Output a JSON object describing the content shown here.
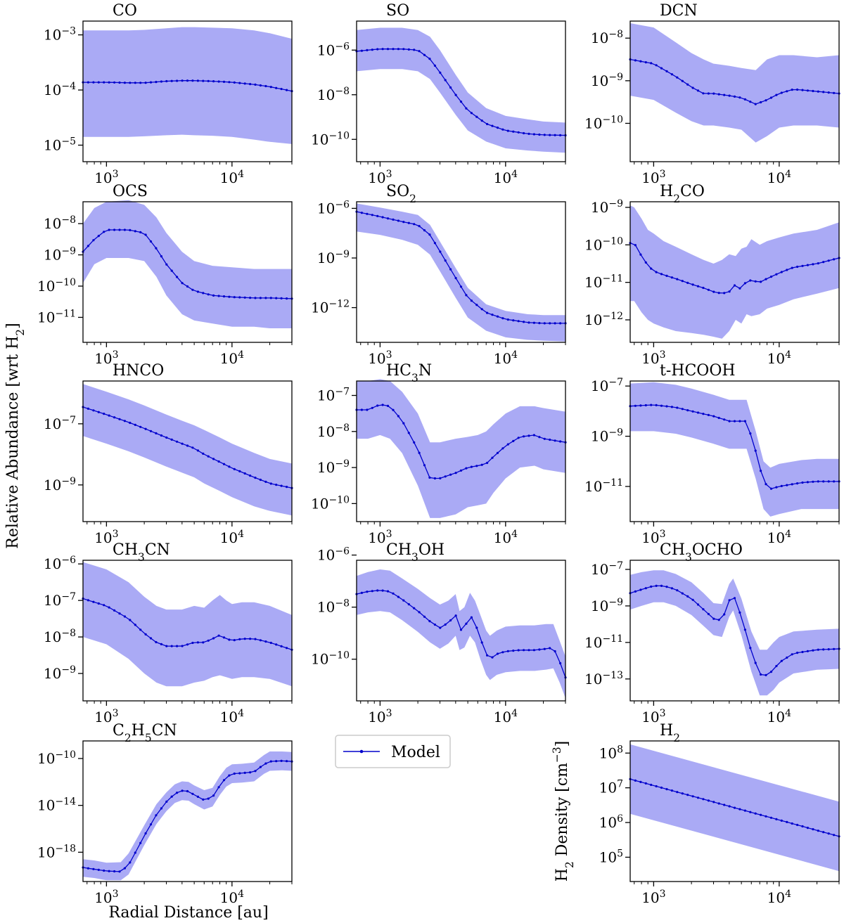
{
  "figure": {
    "ylabel_left": "Relative Abundance [wrt H$_2$]",
    "xlabel": "Radial Distance [au]",
    "legend_label": "Model",
    "colors": {
      "line": "#0000cc",
      "band": "#aaaaf5",
      "frame": "#000000"
    }
  },
  "chart_data": [
    {
      "type": "line",
      "title": "CO",
      "xlim": [
        650,
        30000
      ],
      "ylim_exp": [
        -5.3,
        -2.75
      ],
      "yticks": [
        -5,
        -4,
        -3
      ],
      "xticks": [
        3,
        4
      ],
      "x": [
        650,
        1000,
        1500,
        2000,
        3000,
        4000,
        5000,
        7000,
        10000,
        15000,
        20000,
        30000
      ],
      "values_exp": [
        -3.86,
        -3.86,
        -3.87,
        -3.87,
        -3.84,
        -3.83,
        -3.83,
        -3.84,
        -3.86,
        -3.9,
        -3.94,
        -4.02
      ],
      "upper_exp": [
        -2.92,
        -2.92,
        -2.92,
        -2.91,
        -2.88,
        -2.86,
        -2.86,
        -2.87,
        -2.88,
        -2.92,
        -2.97,
        -3.07
      ],
      "lower_exp": [
        -4.85,
        -4.85,
        -4.85,
        -4.84,
        -4.82,
        -4.81,
        -4.82,
        -4.83,
        -4.85,
        -4.9,
        -4.94,
        -4.98
      ]
    },
    {
      "type": "line",
      "title": "SO",
      "xlim": [
        650,
        30000
      ],
      "ylim_exp": [
        -11,
        -4.7
      ],
      "yticks": [
        -10,
        -8,
        -6
      ],
      "xticks": [
        3,
        4
      ],
      "x": [
        650,
        1000,
        1500,
        2000,
        2500,
        3000,
        4000,
        5000,
        7000,
        10000,
        15000,
        20000,
        30000
      ],
      "values_exp": [
        -6.05,
        -5.95,
        -5.95,
        -6.0,
        -6.4,
        -7.0,
        -8.0,
        -8.7,
        -9.3,
        -9.6,
        -9.75,
        -9.8,
        -9.82
      ],
      "upper_exp": [
        -5.1,
        -5.0,
        -5.0,
        -5.1,
        -5.4,
        -6.0,
        -7.1,
        -7.9,
        -8.6,
        -8.95,
        -9.1,
        -9.2,
        -9.25
      ],
      "lower_exp": [
        -6.95,
        -6.85,
        -6.85,
        -6.95,
        -7.3,
        -7.9,
        -8.9,
        -9.6,
        -10.1,
        -10.4,
        -10.5,
        -10.55,
        -10.6
      ]
    },
    {
      "type": "line",
      "title": "DCN",
      "xlim": [
        650,
        30000
      ],
      "ylim_exp": [
        -10.9,
        -7.6
      ],
      "yticks": [
        -10,
        -9,
        -8
      ],
      "xticks": [
        3,
        4
      ],
      "x": [
        650,
        1000,
        1500,
        2000,
        2500,
        3000,
        4000,
        5000,
        6500,
        8000,
        10000,
        13000,
        20000,
        30000
      ],
      "values_exp": [
        -8.5,
        -8.6,
        -8.9,
        -9.15,
        -9.3,
        -9.3,
        -9.35,
        -9.4,
        -9.55,
        -9.45,
        -9.3,
        -9.2,
        -9.25,
        -9.3
      ],
      "upper_exp": [
        -7.65,
        -7.75,
        -8.1,
        -8.35,
        -8.5,
        -8.6,
        -8.65,
        -8.7,
        -8.75,
        -8.5,
        -8.4,
        -8.4,
        -8.45,
        -8.4
      ],
      "lower_exp": [
        -9.35,
        -9.45,
        -9.75,
        -9.95,
        -10.05,
        -10.05,
        -10.1,
        -10.15,
        -10.45,
        -10.3,
        -10.1,
        -10.05,
        -10.05,
        -10.1
      ]
    },
    {
      "type": "line",
      "title": "OCS",
      "xlim": [
        650,
        30000
      ],
      "ylim_exp": [
        -11.8,
        -7.3
      ],
      "yticks": [
        -11,
        -10,
        -9,
        -8
      ],
      "xticks": [
        3,
        4
      ],
      "x": [
        650,
        800,
        1000,
        1500,
        2000,
        2500,
        3000,
        4000,
        5000,
        7000,
        10000,
        15000,
        20000,
        30000
      ],
      "values_exp": [
        -8.9,
        -8.5,
        -8.2,
        -8.2,
        -8.3,
        -8.8,
        -9.3,
        -9.9,
        -10.15,
        -10.3,
        -10.35,
        -10.38,
        -10.38,
        -10.4
      ],
      "upper_exp": [
        -8.0,
        -7.5,
        -7.3,
        -7.25,
        -7.4,
        -7.8,
        -8.3,
        -8.9,
        -9.2,
        -9.35,
        -9.4,
        -9.45,
        -9.45,
        -9.45
      ],
      "lower_exp": [
        -9.9,
        -9.3,
        -9.1,
        -9.1,
        -9.2,
        -9.7,
        -10.3,
        -10.9,
        -11.1,
        -11.2,
        -11.3,
        -11.3,
        -11.35,
        -11.35
      ]
    },
    {
      "type": "line",
      "title": "SO$_2$",
      "xlim": [
        650,
        30000
      ],
      "ylim_exp": [
        -14.1,
        -5.6
      ],
      "yticks": [
        -12,
        -9,
        -6
      ],
      "xticks": [
        3,
        4
      ],
      "x": [
        650,
        1000,
        1500,
        2000,
        2500,
        3000,
        4000,
        5000,
        7000,
        10000,
        15000,
        20000,
        30000
      ],
      "values_exp": [
        -6.2,
        -6.5,
        -6.8,
        -7.0,
        -7.6,
        -8.6,
        -10.2,
        -11.4,
        -12.3,
        -12.7,
        -12.9,
        -12.95,
        -12.95
      ],
      "upper_exp": [
        -5.7,
        -5.95,
        -6.2,
        -6.4,
        -7.0,
        -8.0,
        -9.6,
        -10.8,
        -11.8,
        -12.2,
        -12.4,
        -12.45,
        -12.45
      ],
      "lower_exp": [
        -7.4,
        -7.6,
        -7.9,
        -8.2,
        -8.8,
        -9.8,
        -11.4,
        -12.6,
        -13.4,
        -13.8,
        -13.95,
        -14.0,
        -14.05
      ]
    },
    {
      "type": "line",
      "title": "H$_2$CO",
      "xlim": [
        650,
        30000
      ],
      "ylim_exp": [
        -12.6,
        -8.85
      ],
      "yticks": [
        -12,
        -11,
        -10,
        -9
      ],
      "xticks": [
        3,
        4
      ],
      "x": [
        650,
        700,
        800,
        900,
        1000,
        1200,
        1500,
        2000,
        2500,
        3000,
        3500,
        4000,
        4500,
        5000,
        5500,
        6000,
        7000,
        8000,
        10000,
        13000,
        20000,
        30000
      ],
      "values_exp": [
        -9.95,
        -9.95,
        -10.3,
        -10.55,
        -10.7,
        -10.8,
        -10.9,
        -11.05,
        -11.15,
        -11.25,
        -11.3,
        -11.25,
        -11.05,
        -11.2,
        -10.95,
        -10.95,
        -11.0,
        -10.9,
        -10.75,
        -10.6,
        -10.5,
        -10.35
      ],
      "upper_exp": [
        -8.95,
        -9.0,
        -9.3,
        -9.6,
        -9.7,
        -9.9,
        -10.05,
        -10.25,
        -10.4,
        -10.5,
        -10.4,
        -10.25,
        -10.3,
        -10.1,
        -10.05,
        -9.85,
        -10.0,
        -9.9,
        -9.8,
        -9.7,
        -9.6,
        -9.4
      ],
      "lower_exp": [
        -11.5,
        -11.5,
        -11.8,
        -12.0,
        -12.1,
        -12.2,
        -12.3,
        -12.35,
        -12.4,
        -12.45,
        -12.5,
        -12.3,
        -12.0,
        -12.1,
        -11.85,
        -11.9,
        -11.85,
        -11.7,
        -11.6,
        -11.45,
        -11.3,
        -11.15
      ]
    },
    {
      "type": "line",
      "title": "HNCO",
      "xlim": [
        650,
        30000
      ],
      "ylim_exp": [
        -10.2,
        -5.6
      ],
      "yticks": [
        -9,
        -7
      ],
      "xticks": [
        3,
        4
      ],
      "x": [
        650,
        1000,
        1500,
        2000,
        3000,
        4000,
        5000,
        6000,
        8000,
        10000,
        15000,
        20000,
        30000
      ],
      "values_exp": [
        -6.45,
        -6.7,
        -6.95,
        -7.15,
        -7.45,
        -7.65,
        -7.8,
        -8.0,
        -8.25,
        -8.45,
        -8.75,
        -8.95,
        -9.1
      ],
      "upper_exp": [
        -5.7,
        -5.95,
        -6.2,
        -6.4,
        -6.7,
        -6.9,
        -7.05,
        -7.2,
        -7.45,
        -7.65,
        -7.95,
        -8.15,
        -8.3
      ],
      "lower_exp": [
        -7.4,
        -7.65,
        -7.9,
        -8.1,
        -8.4,
        -8.6,
        -8.75,
        -8.95,
        -9.2,
        -9.4,
        -9.7,
        -9.85,
        -10.0
      ]
    },
    {
      "type": "line",
      "title": "HC$_3$N",
      "xlim": [
        650,
        30000
      ],
      "ylim_exp": [
        -10.5,
        -6.6
      ],
      "yticks": [
        -10,
        -9,
        -8,
        -7
      ],
      "xticks": [
        3,
        4
      ],
      "x": [
        650,
        800,
        1000,
        1200,
        1500,
        2000,
        2500,
        3000,
        4000,
        5000,
        6000,
        7000,
        8000,
        10000,
        13000,
        17000,
        20000,
        30000
      ],
      "values_exp": [
        -7.4,
        -7.4,
        -7.25,
        -7.3,
        -7.7,
        -8.5,
        -9.3,
        -9.3,
        -9.15,
        -9.0,
        -8.95,
        -8.9,
        -8.7,
        -8.4,
        -8.15,
        -8.1,
        -8.2,
        -8.3
      ],
      "upper_exp": [
        -6.6,
        -6.6,
        -6.55,
        -6.6,
        -6.9,
        -7.5,
        -8.3,
        -8.3,
        -8.2,
        -8.15,
        -8.1,
        -8.0,
        -7.8,
        -7.5,
        -7.3,
        -7.3,
        -7.35,
        -7.45
      ],
      "lower_exp": [
        -8.2,
        -8.2,
        -8.1,
        -8.2,
        -8.6,
        -9.5,
        -10.4,
        -10.4,
        -10.3,
        -10.1,
        -10.05,
        -10.0,
        -9.7,
        -9.3,
        -9.0,
        -8.95,
        -9.05,
        -9.15
      ]
    },
    {
      "type": "line",
      "title": "t-HCOOH",
      "xlim": [
        650,
        30000
      ],
      "ylim_exp": [
        -12.4,
        -6.8
      ],
      "yticks": [
        -11,
        -9,
        -7
      ],
      "xticks": [
        3,
        4
      ],
      "x": [
        650,
        1000,
        1500,
        2000,
        3000,
        4000,
        5000,
        5500,
        6500,
        7500,
        8500,
        10000,
        15000,
        20000,
        30000
      ],
      "values_exp": [
        -7.8,
        -7.75,
        -7.85,
        -8.0,
        -8.2,
        -8.4,
        -8.4,
        -8.4,
        -9.6,
        -10.8,
        -11.1,
        -11.0,
        -10.85,
        -10.8,
        -10.8
      ],
      "upper_exp": [
        -6.9,
        -6.85,
        -6.95,
        -7.1,
        -7.35,
        -7.55,
        -7.55,
        -7.55,
        -8.8,
        -10.0,
        -10.25,
        -10.1,
        -9.95,
        -9.9,
        -9.9
      ],
      "lower_exp": [
        -8.8,
        -8.8,
        -8.9,
        -9.05,
        -9.3,
        -9.5,
        -9.5,
        -9.5,
        -10.7,
        -11.9,
        -12.2,
        -12.1,
        -11.9,
        -11.9,
        -11.9
      ]
    },
    {
      "type": "line",
      "title": "CH$_3$CN",
      "xlim": [
        650,
        30000
      ],
      "ylim_exp": [
        -9.75,
        -5.9
      ],
      "yticks": [
        -9,
        -8,
        -7,
        -6
      ],
      "xticks": [
        3,
        4
      ],
      "x": [
        650,
        1000,
        1500,
        2000,
        2500,
        3000,
        4000,
        5000,
        6000,
        7000,
        8000,
        9000,
        10000,
        12000,
        15000,
        20000,
        30000
      ],
      "values_exp": [
        -6.95,
        -7.15,
        -7.5,
        -7.9,
        -8.15,
        -8.25,
        -8.25,
        -8.15,
        -8.15,
        -8.05,
        -7.95,
        -8.05,
        -8.1,
        -8.05,
        -8.05,
        -8.15,
        -8.35
      ],
      "upper_exp": [
        -5.95,
        -6.15,
        -6.5,
        -6.9,
        -7.15,
        -7.25,
        -7.25,
        -7.15,
        -7.2,
        -7.0,
        -6.85,
        -7.0,
        -7.1,
        -7.05,
        -7.05,
        -7.15,
        -7.4
      ],
      "lower_exp": [
        -8.0,
        -8.2,
        -8.6,
        -9.0,
        -9.25,
        -9.35,
        -9.35,
        -9.25,
        -9.2,
        -9.1,
        -9.05,
        -9.1,
        -9.15,
        -9.1,
        -9.1,
        -9.15,
        -9.35
      ]
    },
    {
      "type": "line",
      "title": "CH$_3$OH",
      "xlim": [
        650,
        30000
      ],
      "ylim_exp": [
        -11.6,
        -6.2
      ],
      "yticks": [
        -10,
        -8,
        -6
      ],
      "xticks": [
        3,
        4
      ],
      "x": [
        650,
        800,
        1000,
        1200,
        1500,
        2000,
        2500,
        3000,
        3500,
        4000,
        4300,
        4700,
        5200,
        5700,
        6300,
        7000,
        7500,
        8500,
        10000,
        13000,
        17000,
        21000,
        24000,
        27000,
        30000
      ],
      "values_exp": [
        -7.5,
        -7.4,
        -7.35,
        -7.4,
        -7.7,
        -8.15,
        -8.55,
        -8.8,
        -8.6,
        -8.3,
        -8.9,
        -8.8,
        -8.3,
        -8.6,
        -9.2,
        -9.8,
        -10.0,
        -9.8,
        -9.7,
        -9.65,
        -9.65,
        -9.6,
        -9.55,
        -10.1,
        -10.7
      ],
      "upper_exp": [
        -6.8,
        -6.65,
        -6.55,
        -6.6,
        -6.9,
        -7.3,
        -7.65,
        -7.9,
        -7.75,
        -7.5,
        -8.15,
        -8.0,
        -7.45,
        -7.75,
        -8.3,
        -8.9,
        -9.1,
        -8.9,
        -8.75,
        -8.7,
        -8.7,
        -8.65,
        -8.65,
        -9.3,
        -9.9
      ],
      "lower_exp": [
        -8.3,
        -8.2,
        -8.15,
        -8.2,
        -8.5,
        -8.95,
        -9.35,
        -9.6,
        -9.4,
        -9.1,
        -9.65,
        -9.55,
        -9.1,
        -9.35,
        -10.0,
        -10.6,
        -10.8,
        -10.6,
        -10.5,
        -10.45,
        -10.45,
        -10.4,
        -10.35,
        -10.9,
        -11.5
      ]
    },
    {
      "type": "line",
      "title": "CH$_3$OCHO",
      "xlim": [
        650,
        30000
      ],
      "ylim_exp": [
        -14.2,
        -6.5
      ],
      "yticks": [
        -13,
        -11,
        -9,
        -7
      ],
      "xticks": [
        3,
        4
      ],
      "x": [
        650,
        800,
        1000,
        1200,
        1500,
        2000,
        2500,
        3000,
        3500,
        4000,
        4300,
        5000,
        6000,
        7000,
        8000,
        9000,
        10000,
        13000,
        20000,
        30000
      ],
      "values_exp": [
        -8.3,
        -8.1,
        -7.9,
        -7.9,
        -8.1,
        -8.6,
        -9.2,
        -9.7,
        -9.8,
        -8.7,
        -8.35,
        -9.6,
        -11.5,
        -12.75,
        -12.8,
        -12.5,
        -12.1,
        -11.6,
        -11.4,
        -11.35
      ],
      "upper_exp": [
        -7.3,
        -7.15,
        -7.05,
        -7.05,
        -7.25,
        -7.7,
        -8.3,
        -8.85,
        -8.9,
        -7.8,
        -7.5,
        -8.6,
        -10.4,
        -11.4,
        -11.4,
        -11.0,
        -10.7,
        -10.4,
        -10.3,
        -10.25
      ],
      "lower_exp": [
        -9.2,
        -9.0,
        -8.8,
        -8.8,
        -9.0,
        -9.5,
        -10.1,
        -10.6,
        -10.7,
        -9.6,
        -9.25,
        -10.6,
        -12.6,
        -13.9,
        -13.9,
        -13.6,
        -13.2,
        -12.7,
        -12.5,
        -12.45
      ]
    },
    {
      "type": "line",
      "title": "C$_2$H$_5$CN",
      "xlim": [
        650,
        30000
      ],
      "ylim_exp": [
        -20.5,
        -8.5
      ],
      "yticks": [
        -18,
        -14,
        -10
      ],
      "xticks": [
        3,
        4
      ],
      "x": [
        650,
        800,
        1000,
        1300,
        1500,
        2000,
        2500,
        3000,
        3500,
        4000,
        4500,
        5000,
        6000,
        7000,
        8000,
        9000,
        10000,
        12000,
        15000,
        18000,
        20000,
        25000,
        30000
      ],
      "values_exp": [
        -19.3,
        -19.45,
        -19.6,
        -19.65,
        -19.1,
        -16.6,
        -14.8,
        -13.7,
        -13.0,
        -12.75,
        -12.8,
        -13.1,
        -13.55,
        -13.3,
        -12.3,
        -11.6,
        -11.3,
        -11.25,
        -11.15,
        -10.5,
        -10.25,
        -10.2,
        -10.25
      ],
      "upper_exp": [
        -18.6,
        -18.7,
        -18.9,
        -18.85,
        -18.1,
        -15.7,
        -13.9,
        -12.9,
        -12.2,
        -11.95,
        -12.0,
        -12.3,
        -12.7,
        -12.5,
        -11.5,
        -10.8,
        -10.5,
        -10.45,
        -10.35,
        -9.7,
        -9.4,
        -9.4,
        -9.45
      ],
      "lower_exp": [
        -20.1,
        -20.2,
        -20.4,
        -20.4,
        -19.9,
        -17.4,
        -15.6,
        -14.5,
        -13.8,
        -13.55,
        -13.6,
        -13.9,
        -14.35,
        -14.1,
        -13.1,
        -12.4,
        -12.1,
        -12.05,
        -11.95,
        -11.3,
        -11.05,
        -11.0,
        -11.05
      ]
    },
    {
      "type": "line",
      "title": "H$_2$",
      "ylabel": "H$_2$ Density [cm$^{-3}$]",
      "xlim": [
        650,
        30000
      ],
      "ylim_exp": [
        4.3,
        8.35
      ],
      "yticks": [
        5,
        6,
        7,
        8
      ],
      "xticks": [
        3,
        4
      ],
      "x": [
        650,
        30000
      ],
      "values_exp": [
        7.25,
        5.6
      ],
      "upper_exp": [
        8.25,
        6.6
      ],
      "lower_exp": [
        6.25,
        4.6
      ]
    }
  ]
}
